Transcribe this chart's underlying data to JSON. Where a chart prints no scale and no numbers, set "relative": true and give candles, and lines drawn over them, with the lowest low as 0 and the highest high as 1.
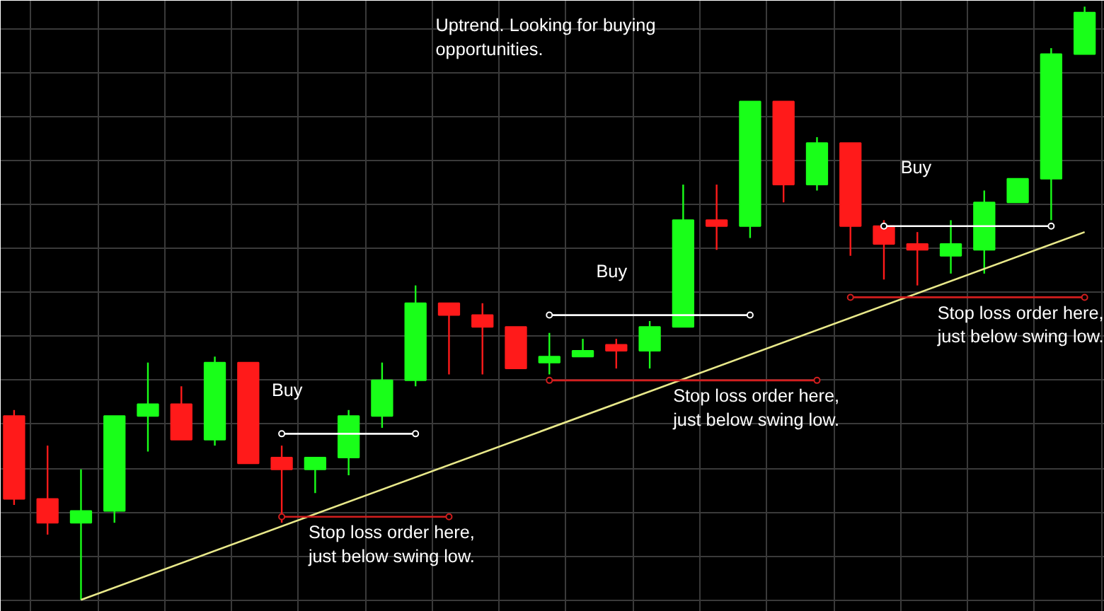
{
  "chart_data": {
    "type": "candlestick",
    "relative": true,
    "grid": true,
    "categories": [
      null,
      null,
      null,
      null,
      null,
      null,
      null,
      null,
      null,
      null,
      null,
      null,
      null,
      null,
      null,
      null,
      null,
      null,
      null,
      null,
      null,
      null,
      null,
      null,
      null,
      null,
      null,
      null,
      null,
      null,
      null,
      null,
      null
    ],
    "ohlc": [
      [
        0.31,
        0.32,
        0.16,
        0.17
      ],
      [
        0.17,
        0.26,
        0.11,
        0.13
      ],
      [
        0.13,
        0.22,
        0.0,
        0.15
      ],
      [
        0.15,
        0.31,
        0.13,
        0.31
      ],
      [
        0.31,
        0.4,
        0.25,
        0.33
      ],
      [
        0.33,
        0.36,
        0.27,
        0.27
      ],
      [
        0.27,
        0.41,
        0.26,
        0.4
      ],
      [
        0.4,
        0.4,
        0.23,
        0.23
      ],
      [
        0.24,
        0.26,
        0.13,
        0.22
      ],
      [
        0.22,
        0.24,
        0.18,
        0.24
      ],
      [
        0.24,
        0.32,
        0.21,
        0.31
      ],
      [
        0.31,
        0.4,
        0.29,
        0.37
      ],
      [
        0.37,
        0.53,
        0.36,
        0.5
      ],
      [
        0.5,
        0.5,
        0.38,
        0.48
      ],
      [
        0.48,
        0.5,
        0.38,
        0.46
      ],
      [
        0.46,
        0.46,
        0.39,
        0.39
      ],
      [
        0.4,
        0.45,
        0.38,
        0.41
      ],
      [
        0.41,
        0.44,
        0.41,
        0.42
      ],
      [
        0.43,
        0.44,
        0.39,
        0.42
      ],
      [
        0.42,
        0.47,
        0.39,
        0.46
      ],
      [
        0.46,
        0.7,
        0.46,
        0.64
      ],
      [
        0.64,
        0.7,
        0.59,
        0.63
      ],
      [
        0.63,
        0.84,
        0.61,
        0.84
      ],
      [
        0.84,
        0.84,
        0.67,
        0.7
      ],
      [
        0.7,
        0.78,
        0.69,
        0.77
      ],
      [
        0.77,
        0.77,
        0.58,
        0.63
      ],
      [
        0.63,
        0.64,
        0.54,
        0.6
      ],
      [
        0.6,
        0.62,
        0.53,
        0.59
      ],
      [
        0.58,
        0.64,
        0.55,
        0.6
      ],
      [
        0.59,
        0.69,
        0.55,
        0.67
      ],
      [
        0.67,
        0.71,
        0.67,
        0.71
      ],
      [
        0.71,
        0.93,
        0.64,
        0.92
      ],
      [
        0.92,
        1.0,
        0.92,
        0.99
      ]
    ],
    "colors": [
      "#ff1a1a",
      "#ff1a1a",
      "#19ff19",
      "#19ff19",
      "#19ff19",
      "#ff1a1a",
      "#19ff19",
      "#ff1a1a",
      "#ff1a1a",
      "#19ff19",
      "#19ff19",
      "#19ff19",
      "#19ff19",
      "#ff1a1a",
      "#ff1a1a",
      "#ff1a1a",
      "#19ff19",
      "#19ff19",
      "#ff1a1a",
      "#19ff19",
      "#19ff19",
      "#ff1a1a",
      "#19ff19",
      "#ff1a1a",
      "#19ff19",
      "#ff1a1a",
      "#ff1a1a",
      "#ff1a1a",
      "#19ff19",
      "#19ff19",
      "#19ff19",
      "#19ff19",
      "#19ff19"
    ],
    "series": [
      {
        "type": "line",
        "color": "#e8e88a",
        "marker": "none",
        "values": [
          null,
          null,
          0.0,
          null,
          null,
          null,
          null,
          null,
          null,
          null,
          null,
          null,
          null,
          null,
          null,
          null,
          null,
          null,
          null,
          null,
          null,
          null,
          null,
          null,
          null,
          null,
          null,
          null,
          null,
          null,
          null,
          null,
          0.62
        ]
      },
      {
        "type": "line",
        "color": "#ffffff",
        "marker": "circle",
        "values": [
          null,
          null,
          null,
          null,
          null,
          null,
          null,
          null,
          0.28,
          null,
          null,
          null,
          0.28,
          null,
          null,
          null,
          null,
          null,
          null,
          null,
          null,
          null,
          null,
          null,
          null,
          null,
          null,
          null,
          null,
          null,
          null,
          null,
          null
        ]
      },
      {
        "type": "line",
        "color": "#d21e1e",
        "marker": "circle",
        "values": [
          null,
          null,
          null,
          null,
          null,
          null,
          null,
          null,
          0.14,
          null,
          null,
          null,
          null,
          0.14,
          null,
          null,
          null,
          null,
          null,
          null,
          null,
          null,
          null,
          null,
          null,
          null,
          null,
          null,
          null,
          null,
          null,
          null,
          null
        ]
      },
      {
        "type": "line",
        "color": "#ffffff",
        "marker": "circle",
        "values": [
          null,
          null,
          null,
          null,
          null,
          null,
          null,
          null,
          null,
          null,
          null,
          null,
          null,
          null,
          null,
          null,
          0.48,
          null,
          null,
          null,
          null,
          null,
          0.48,
          null,
          null,
          null,
          null,
          null,
          null,
          null,
          null,
          null,
          null
        ]
      },
      {
        "type": "line",
        "color": "#d21e1e",
        "marker": "circle",
        "values": [
          null,
          null,
          null,
          null,
          null,
          null,
          null,
          null,
          null,
          null,
          null,
          null,
          null,
          null,
          null,
          null,
          0.37,
          null,
          null,
          null,
          null,
          null,
          null,
          null,
          0.37,
          null,
          null,
          null,
          null,
          null,
          null,
          null,
          null
        ]
      },
      {
        "type": "line",
        "color": "#ffffff",
        "marker": "circle",
        "values": [
          null,
          null,
          null,
          null,
          null,
          null,
          null,
          null,
          null,
          null,
          null,
          null,
          null,
          null,
          null,
          null,
          null,
          null,
          null,
          null,
          null,
          null,
          null,
          null,
          null,
          null,
          0.63,
          null,
          null,
          null,
          null,
          0.63,
          null
        ]
      },
      {
        "type": "line",
        "color": "#d21e1e",
        "marker": "circle",
        "values": [
          null,
          null,
          null,
          null,
          null,
          null,
          null,
          null,
          null,
          null,
          null,
          null,
          null,
          null,
          null,
          null,
          null,
          null,
          null,
          null,
          null,
          null,
          null,
          null,
          null,
          0.51,
          null,
          null,
          null,
          null,
          null,
          null,
          0.51
        ]
      }
    ],
    "annotations": [
      "Uptrend. Looking for buying\nopportunities.",
      "Buy",
      "Buy",
      "Buy",
      "Stop loss order here,\njust below swing low.",
      "Stop loss order here,\njust below swing low.",
      "Stop loss order here,\njust below swing low."
    ]
  }
}
